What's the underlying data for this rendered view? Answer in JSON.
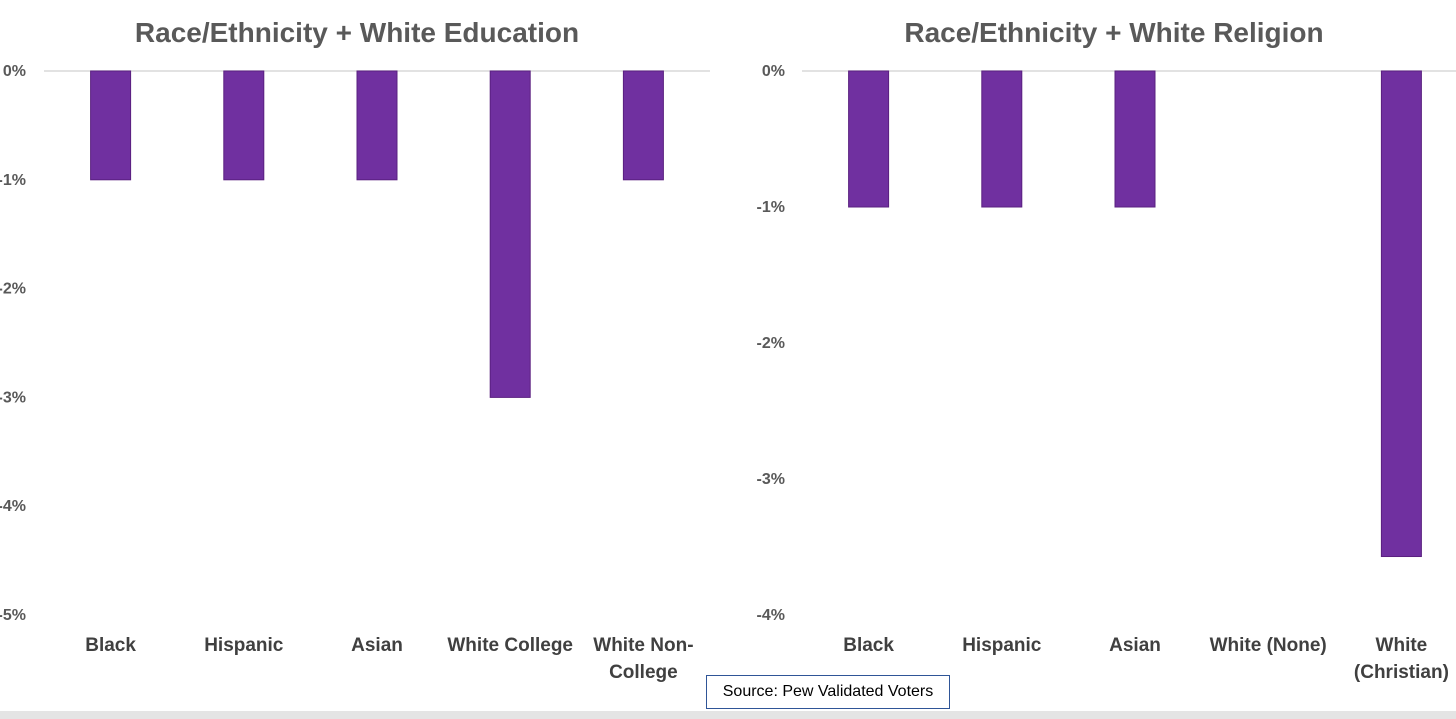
{
  "source_note": "Source: Pew Validated Voters",
  "colors": {
    "bar": "#7030a0",
    "bar_edge": "#5a2080",
    "axis_line": "#d9d9d9",
    "text": "#595959"
  },
  "chart_data": [
    {
      "type": "bar",
      "title": "Race/Ethnicity + White Education",
      "categories": [
        "Black",
        "Hispanic",
        "Asian",
        "White College",
        "White Non-College"
      ],
      "category_lines": [
        [
          "Black"
        ],
        [
          "Hispanic"
        ],
        [
          "Asian"
        ],
        [
          "White College"
        ],
        [
          "White Non-",
          "College"
        ]
      ],
      "values": [
        -1,
        -1,
        -1,
        -3,
        -1
      ],
      "ylim": [
        -5,
        0
      ],
      "yticks": [
        0,
        -1,
        -2,
        -3,
        -4,
        -5
      ],
      "ytick_labels": [
        "0%",
        "-1%",
        "-2%",
        "-3%",
        "-4%",
        "-5%"
      ],
      "xlabel": "",
      "ylabel": "",
      "grid": false,
      "legend": "none"
    },
    {
      "type": "bar",
      "title": "Race/Ethnicity + White Religion",
      "categories": [
        "Black",
        "Hispanic",
        "Asian",
        "White (None)",
        "White (Christian)"
      ],
      "category_lines": [
        [
          "Black"
        ],
        [
          "Hispanic"
        ],
        [
          "Asian"
        ],
        [
          "White (None)"
        ],
        [
          "White",
          "(Christian)"
        ]
      ],
      "values": [
        -1,
        -1,
        -1,
        0,
        -3.57
      ],
      "ylim": [
        -4,
        0
      ],
      "yticks": [
        0,
        -1,
        -2,
        -3,
        -4
      ],
      "ytick_labels": [
        "0%",
        "-1%",
        "-2%",
        "-3%",
        "-4%"
      ],
      "xlabel": "",
      "ylabel": "",
      "grid": false,
      "legend": "none"
    }
  ]
}
